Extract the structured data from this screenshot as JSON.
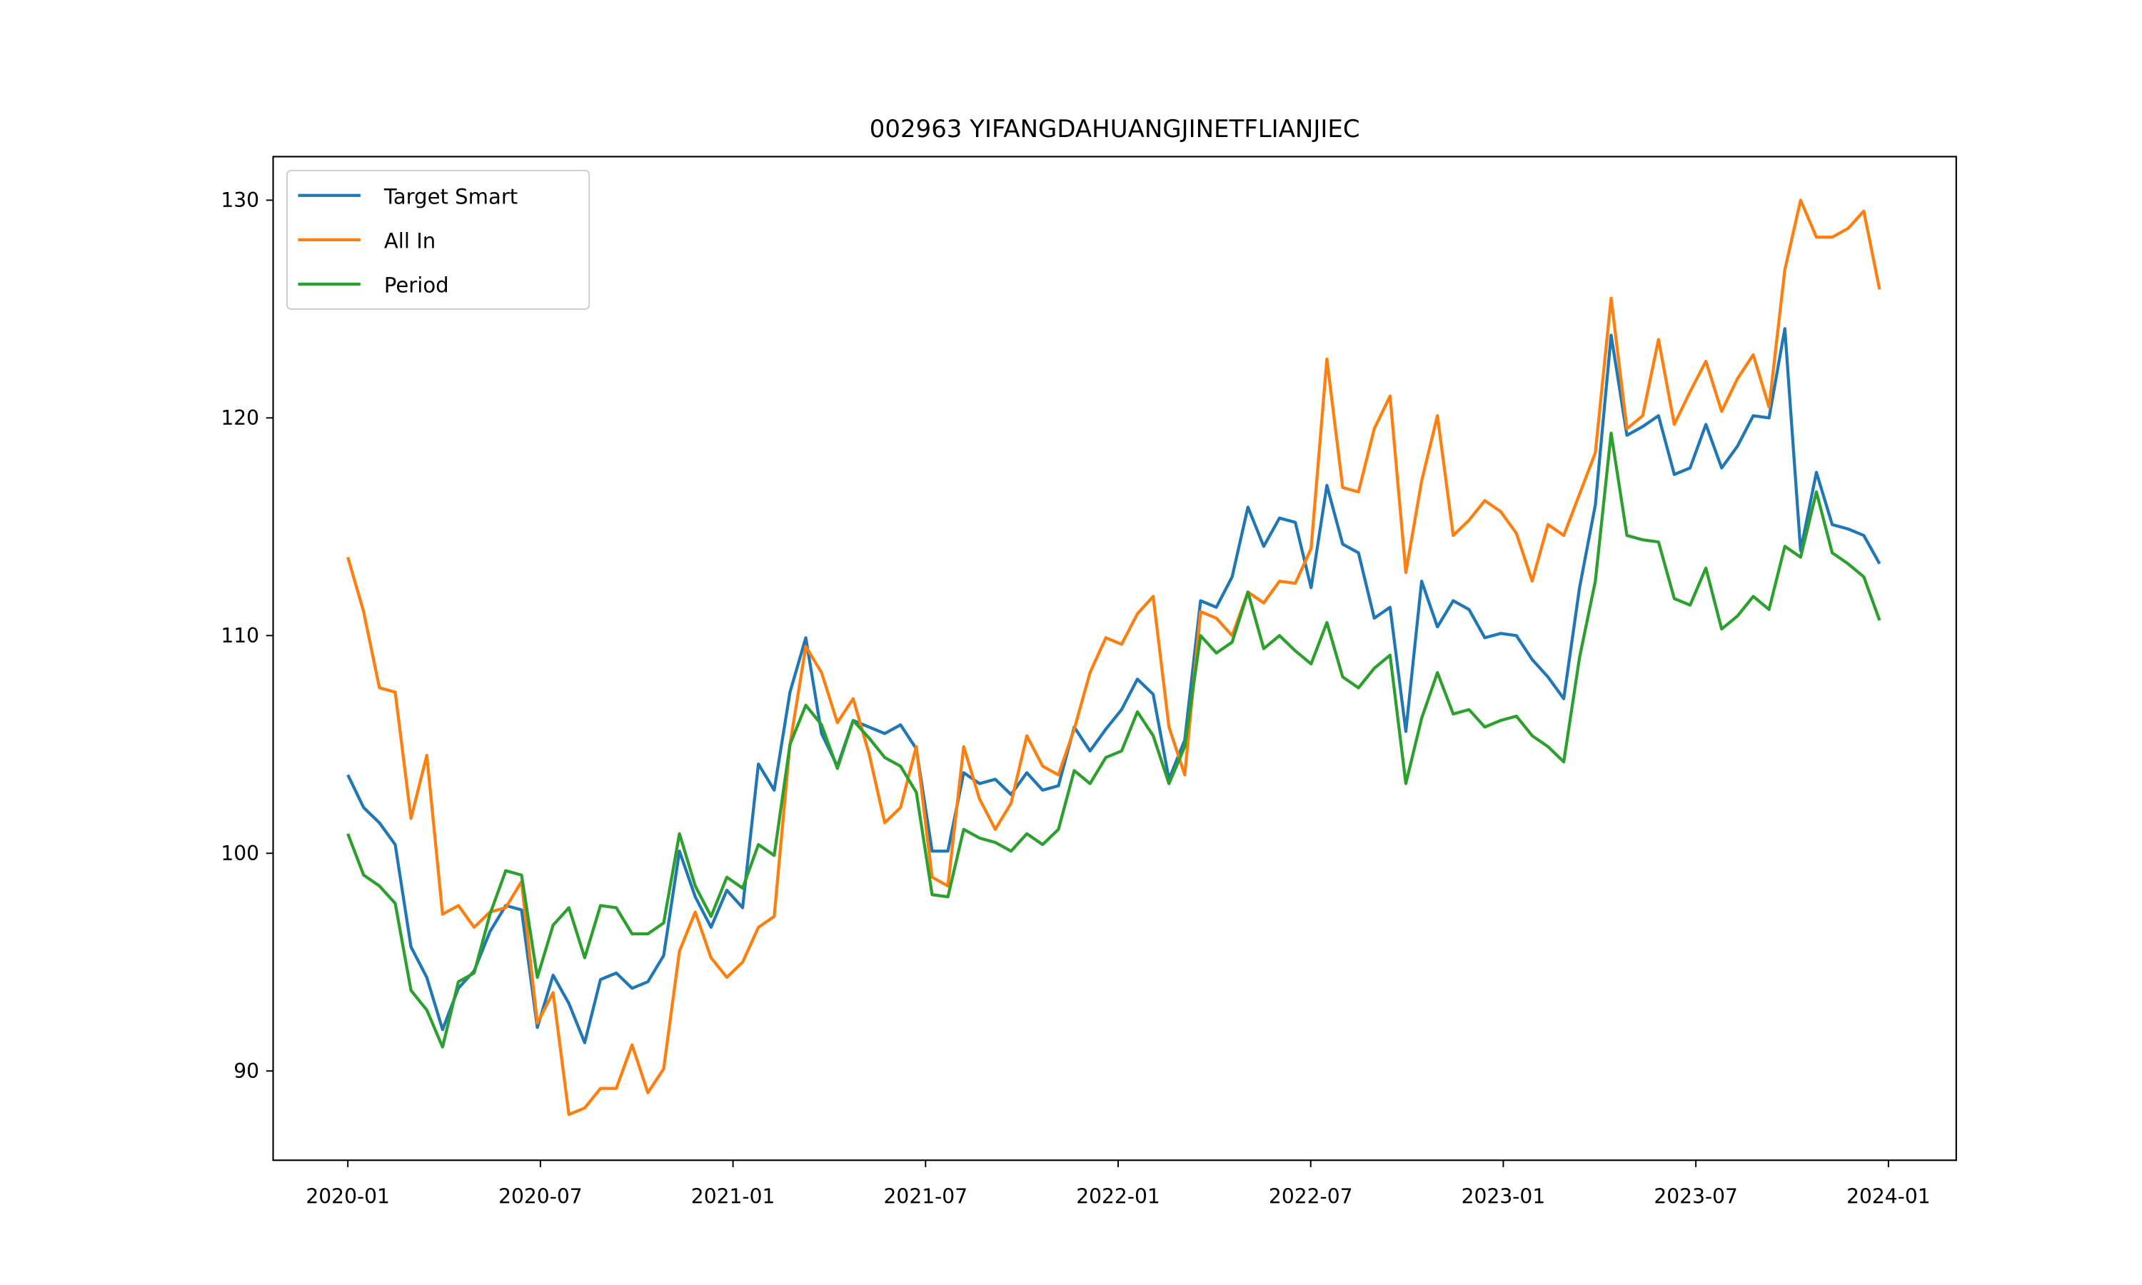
{
  "chart_data": {
    "type": "line",
    "title": "002963 YIFANGDAHUANGJINETFLIANJIEC",
    "x": [
      2020,
      2020.041,
      2020.082,
      2020.123,
      2020.164,
      2020.205,
      2020.246,
      2020.287,
      2020.328,
      2020.369,
      2020.41,
      2020.451,
      2020.492,
      2020.533,
      2020.574,
      2020.615,
      2020.656,
      2020.697,
      2020.738,
      2020.779,
      2020.82,
      2020.861,
      2020.902,
      2020.943,
      2020.984,
      2021.025,
      2021.066,
      2021.107,
      2021.148,
      2021.189,
      2021.23,
      2021.271,
      2021.312,
      2021.353,
      2021.394,
      2021.435,
      2021.476,
      2021.517,
      2021.558,
      2021.599,
      2021.64,
      2021.681,
      2021.722,
      2021.763,
      2021.804,
      2021.845,
      2021.886,
      2021.927,
      2021.968,
      2022.009,
      2022.05,
      2022.091,
      2022.132,
      2022.173,
      2022.214,
      2022.255,
      2022.296,
      2022.337,
      2022.378,
      2022.419,
      2022.46,
      2022.501,
      2022.542,
      2022.583,
      2022.624,
      2022.665,
      2022.706,
      2022.747,
      2022.788,
      2022.829,
      2022.87,
      2022.911,
      2022.952,
      2022.993,
      2023.034,
      2023.075,
      2023.116,
      2023.157,
      2023.198,
      2023.239,
      2023.28,
      2023.321,
      2023.362,
      2023.403,
      2023.444,
      2023.485,
      2023.526,
      2023.567,
      2023.608,
      2023.649,
      2023.69,
      2023.731,
      2023.772,
      2023.813,
      2023.854,
      2023.895,
      2023.936,
      2023.977
    ],
    "series": [
      {
        "name": "Target Smart",
        "color": "#1f77b4",
        "values": [
          103.6,
          102.1,
          101.4,
          100.4,
          95.7,
          94.3,
          91.9,
          93.8,
          94.6,
          96.4,
          97.6,
          97.4,
          92.0,
          94.4,
          93.1,
          91.3,
          94.2,
          94.5,
          93.8,
          94.1,
          95.3,
          100.1,
          98.0,
          96.6,
          98.3,
          97.5,
          104.1,
          102.9,
          107.4,
          109.9,
          105.5,
          104.0,
          106.1,
          105.8,
          105.5,
          105.9,
          104.8,
          100.1,
          100.1,
          103.7,
          103.2,
          103.4,
          102.7,
          103.7,
          102.9,
          103.1,
          105.8,
          104.7,
          105.7,
          106.6,
          108.0,
          107.3,
          103.4,
          105.2,
          111.6,
          111.3,
          112.7,
          115.9,
          114.1,
          115.4,
          115.2,
          112.2,
          116.9,
          114.2,
          113.8,
          110.8,
          111.3,
          105.6,
          112.5,
          110.4,
          111.6,
          111.2,
          109.9,
          110.1,
          110.0,
          108.9,
          108.1,
          107.1,
          112.2,
          116.0,
          123.8,
          119.2,
          119.6,
          120.1,
          117.4,
          117.7,
          119.7,
          117.7,
          118.7,
          120.1,
          120.0,
          124.1,
          113.9,
          117.5,
          115.1,
          114.9,
          114.6,
          113.3
        ]
      },
      {
        "name": "All In",
        "color": "#ff7f0e",
        "values": [
          113.6,
          111.1,
          107.6,
          107.4,
          101.6,
          104.5,
          97.2,
          97.6,
          96.6,
          97.3,
          97.5,
          98.7,
          92.2,
          93.6,
          88.0,
          88.3,
          89.2,
          89.2,
          91.2,
          89.0,
          90.1,
          95.5,
          97.3,
          95.2,
          94.3,
          95.0,
          96.6,
          97.1,
          105.0,
          109.5,
          108.3,
          106.0,
          107.1,
          104.6,
          101.4,
          102.1,
          104.9,
          98.9,
          98.5,
          104.9,
          102.5,
          101.1,
          102.3,
          105.4,
          104.0,
          103.6,
          105.7,
          108.3,
          109.9,
          109.6,
          111.0,
          111.8,
          105.8,
          103.6,
          111.1,
          110.8,
          110.0,
          112.0,
          111.5,
          112.5,
          112.4,
          114.0,
          122.7,
          116.8,
          116.6,
          119.5,
          121.0,
          112.9,
          117.1,
          120.1,
          114.6,
          115.3,
          116.2,
          115.7,
          114.7,
          112.5,
          115.1,
          114.6,
          116.5,
          118.4,
          125.5,
          119.5,
          120.1,
          123.6,
          119.7,
          121.2,
          122.6,
          120.3,
          121.8,
          122.9,
          120.5,
          126.8,
          130.0,
          128.3,
          128.3,
          128.7,
          129.5,
          125.9
        ]
      },
      {
        "name": "Period",
        "color": "#2ca02c",
        "values": [
          100.9,
          99.0,
          98.5,
          97.7,
          93.7,
          92.8,
          91.1,
          94.1,
          94.5,
          97.2,
          99.2,
          99.0,
          94.3,
          96.7,
          97.5,
          95.2,
          97.6,
          97.5,
          96.3,
          96.3,
          96.8,
          100.9,
          98.5,
          97.1,
          98.9,
          98.4,
          100.4,
          99.9,
          105.0,
          106.8,
          105.9,
          103.9,
          106.1,
          105.3,
          104.4,
          104.0,
          102.8,
          98.1,
          98.0,
          101.1,
          100.7,
          100.5,
          100.1,
          100.9,
          100.4,
          101.1,
          103.8,
          103.2,
          104.4,
          104.7,
          106.5,
          105.4,
          103.2,
          104.9,
          110.0,
          109.2,
          109.7,
          112.0,
          109.4,
          110.0,
          109.3,
          108.7,
          110.6,
          108.1,
          107.6,
          108.5,
          109.1,
          103.2,
          106.2,
          108.3,
          106.4,
          106.6,
          105.8,
          106.1,
          106.3,
          105.4,
          104.9,
          104.2,
          109.0,
          112.5,
          119.3,
          114.6,
          114.4,
          114.3,
          111.7,
          111.4,
          113.1,
          110.3,
          110.9,
          111.8,
          111.2,
          114.1,
          113.6,
          116.6,
          113.8,
          113.3,
          112.7,
          110.7
        ]
      }
    ],
    "xlim": [
      2019.806,
      2024.176
    ],
    "xticks": [
      {
        "value": 2020,
        "label": "2020-01"
      },
      {
        "value": 2020.5,
        "label": "2020-07"
      },
      {
        "value": 2021,
        "label": "2021-01"
      },
      {
        "value": 2021.5,
        "label": "2021-07"
      },
      {
        "value": 2022,
        "label": "2022-01"
      },
      {
        "value": 2022.5,
        "label": "2022-07"
      },
      {
        "value": 2023,
        "label": "2023-01"
      },
      {
        "value": 2023.5,
        "label": "2023-07"
      },
      {
        "value": 2024,
        "label": "2024-01"
      }
    ],
    "ylim": [
      85.9,
      132.0
    ],
    "yticks": [
      90,
      100,
      110,
      120,
      130
    ],
    "grid": false,
    "legend": "upper left"
  }
}
